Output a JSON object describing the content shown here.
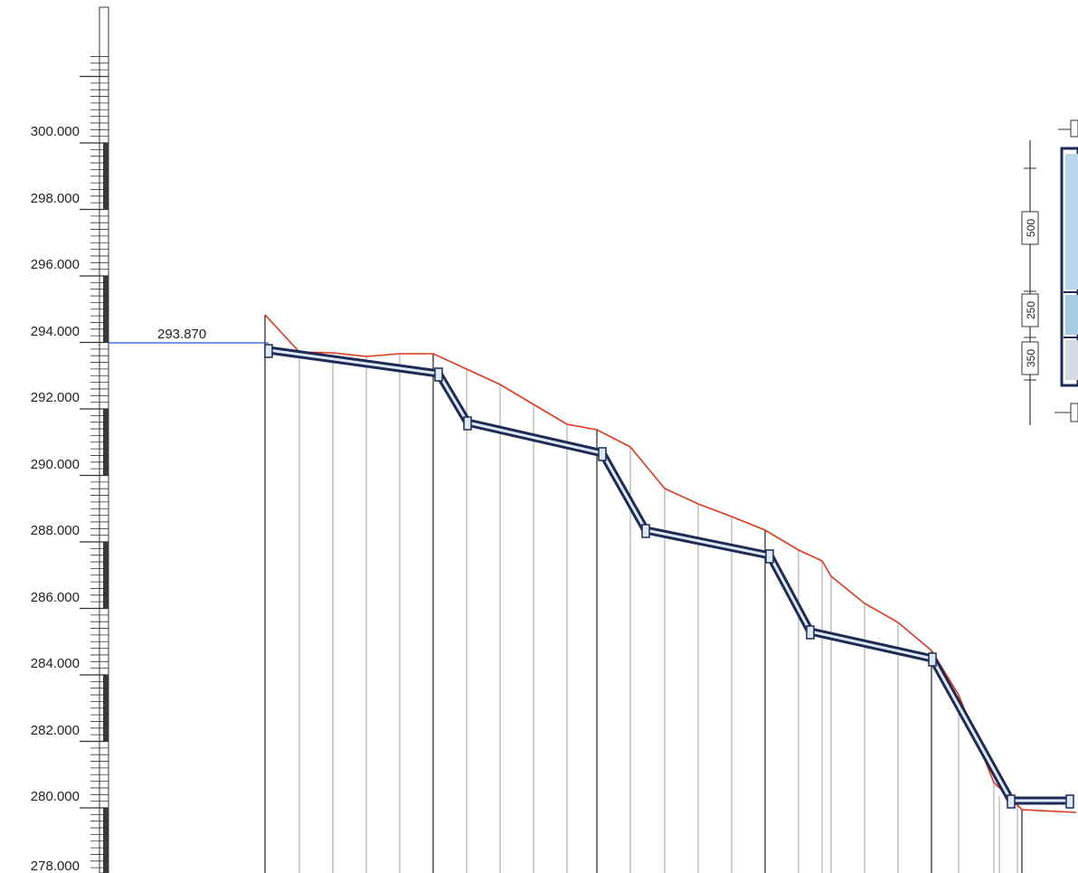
{
  "vertical_scale": {
    "labels": [
      "300.000",
      "298.000",
      "296.000",
      "294.000",
      "292.000",
      "290.000",
      "288.000",
      "286.000",
      "284.000",
      "282.000",
      "280.000",
      "278.000"
    ],
    "values": [
      300,
      298,
      296,
      294,
      292,
      290,
      288,
      286,
      284,
      282,
      280,
      278
    ],
    "range": [
      277.5,
      302.5
    ]
  },
  "reference_level": {
    "label": "293.870",
    "value": 293.87,
    "color": "#2255cc"
  },
  "section_dimensions": [
    "500",
    "250",
    "350"
  ],
  "colors": {
    "ground_line": "#e0361c",
    "structure": "#1e2b55",
    "structure_fill": "#dde9f7",
    "grid": "#8a8a8a"
  }
}
